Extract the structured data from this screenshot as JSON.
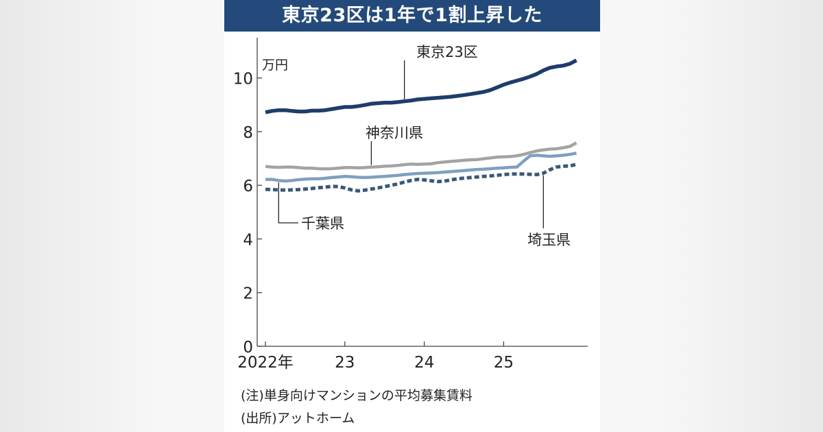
{
  "title": "東京23区は1年で1割上昇した",
  "colors": {
    "title_bg": "#234a7a",
    "tokyo": "#1e3d6b",
    "kanagawa": "#a3a3a3",
    "chiba": "#7f9fc0",
    "saitama": "#3c5878",
    "axis": "#444444"
  },
  "chart_data": {
    "type": "line",
    "title": "東京23区は1年で1割上昇した",
    "ylabel": "万円",
    "xlabel": "",
    "ylim": [
      0,
      11.5
    ],
    "yticks": [
      0,
      2,
      4,
      6,
      8,
      10
    ],
    "x_range_months": [
      0,
      47
    ],
    "xticks": [
      {
        "label": "2022年",
        "month": 0
      },
      {
        "label": "23",
        "month": 12
      },
      {
        "label": "24",
        "month": 24
      },
      {
        "label": "25",
        "month": 36
      }
    ],
    "series": [
      {
        "name": "東京23区",
        "style": "solid",
        "color": "#1e3d6b",
        "values": [
          8.72,
          8.77,
          8.8,
          8.8,
          8.77,
          8.75,
          8.75,
          8.78,
          8.78,
          8.8,
          8.84,
          8.88,
          8.92,
          8.92,
          8.95,
          8.99,
          9.04,
          9.06,
          9.08,
          9.08,
          9.1,
          9.13,
          9.16,
          9.2,
          9.22,
          9.24,
          9.26,
          9.28,
          9.3,
          9.33,
          9.36,
          9.4,
          9.44,
          9.48,
          9.55,
          9.65,
          9.75,
          9.83,
          9.9,
          9.97,
          10.05,
          10.15,
          10.28,
          10.38,
          10.43,
          10.46,
          10.53,
          10.66
        ]
      },
      {
        "name": "神奈川県",
        "style": "solid",
        "color": "#a3a3a3",
        "values": [
          6.7,
          6.68,
          6.67,
          6.68,
          6.68,
          6.66,
          6.64,
          6.64,
          6.62,
          6.61,
          6.62,
          6.64,
          6.66,
          6.66,
          6.65,
          6.66,
          6.68,
          6.69,
          6.71,
          6.72,
          6.74,
          6.77,
          6.79,
          6.78,
          6.79,
          6.8,
          6.84,
          6.87,
          6.89,
          6.91,
          6.93,
          6.95,
          6.96,
          6.99,
          7.02,
          7.05,
          7.06,
          7.07,
          7.1,
          7.15,
          7.22,
          7.28,
          7.32,
          7.35,
          7.36,
          7.4,
          7.45,
          7.58
        ]
      },
      {
        "name": "千葉県",
        "style": "solid",
        "color": "#7f9fc0",
        "values": [
          6.22,
          6.22,
          6.18,
          6.16,
          6.18,
          6.21,
          6.23,
          6.24,
          6.24,
          6.26,
          6.29,
          6.31,
          6.33,
          6.32,
          6.3,
          6.29,
          6.3,
          6.32,
          6.33,
          6.35,
          6.37,
          6.4,
          6.42,
          6.44,
          6.45,
          6.46,
          6.47,
          6.49,
          6.51,
          6.53,
          6.55,
          6.57,
          6.59,
          6.6,
          6.62,
          6.64,
          6.65,
          6.67,
          6.68,
          6.9,
          7.1,
          7.12,
          7.1,
          7.08,
          7.1,
          7.12,
          7.15,
          7.2
        ]
      },
      {
        "name": "埼玉県",
        "style": "dashed",
        "color": "#3c5878",
        "values": [
          5.85,
          5.84,
          5.83,
          5.82,
          5.83,
          5.84,
          5.86,
          5.88,
          5.91,
          5.93,
          5.96,
          5.95,
          5.9,
          5.83,
          5.79,
          5.82,
          5.86,
          5.9,
          5.95,
          6.0,
          6.05,
          6.12,
          6.18,
          6.22,
          6.2,
          6.17,
          6.14,
          6.15,
          6.2,
          6.24,
          6.27,
          6.29,
          6.31,
          6.33,
          6.35,
          6.37,
          6.4,
          6.42,
          6.42,
          6.42,
          6.41,
          6.4,
          6.45,
          6.58,
          6.68,
          6.71,
          6.72,
          6.78
        ]
      }
    ],
    "annotations": [
      {
        "text": "東京23区",
        "series": "東京23区",
        "month": 21
      },
      {
        "text": "神奈川県",
        "series": "神奈川県",
        "month": 16
      },
      {
        "text": "千葉県",
        "series": "千葉県",
        "month": 2
      },
      {
        "text": "埼玉県",
        "series": "埼玉県",
        "month": 42
      }
    ]
  },
  "notes": {
    "note": "(注)単身向けマンションの平均募集賃料",
    "source": "(出所)アットホーム"
  }
}
